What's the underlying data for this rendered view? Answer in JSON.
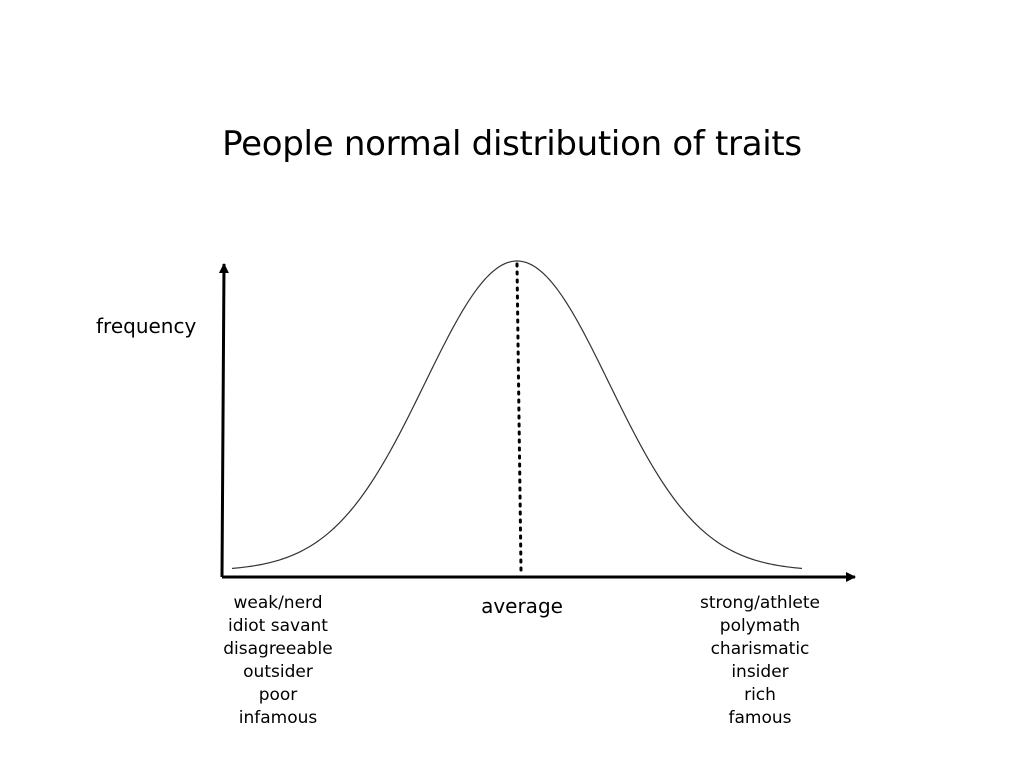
{
  "title": "People normal distribution of traits",
  "y_axis_label": "frequency",
  "center_label": "average",
  "left_traits": [
    "weak/nerd",
    "idiot savant",
    "disagreeable",
    "outsider",
    "poor",
    "infamous"
  ],
  "right_traits": [
    "strong/athlete",
    "polymath",
    "charismatic",
    "insider",
    "rich",
    "famous"
  ],
  "diagram": {
    "type": "normal-distribution-curve",
    "x_axis_arrow": true,
    "y_axis_arrow": true,
    "mean_line_style": "dotted"
  }
}
